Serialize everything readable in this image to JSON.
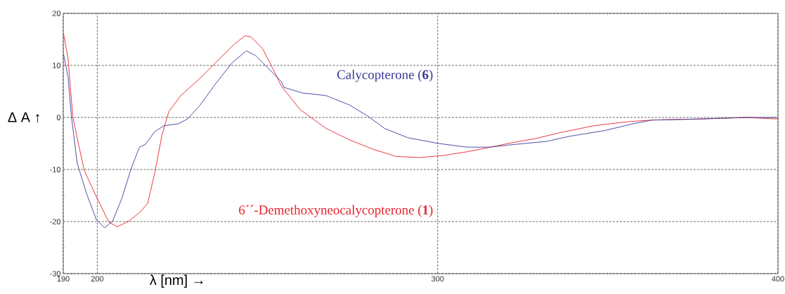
{
  "chart_data": {
    "type": "line",
    "xlabel": "λ [nm] →",
    "ylabel": "Δ A ↑",
    "xlim": [
      190,
      400
    ],
    "ylim": [
      -30,
      20
    ],
    "xticks": [
      190,
      200,
      {
        "value": 250,
        "label": null
      },
      300,
      {
        "value": 350,
        "label": null
      },
      400
    ],
    "yticks": [
      -30,
      {
        "value": -25,
        "label": null
      },
      -20,
      {
        "value": -15,
        "label": null
      },
      -10,
      {
        "value": -5,
        "label": null
      },
      0,
      {
        "value": 5,
        "label": null
      },
      10,
      {
        "value": 15,
        "label": null
      },
      20
    ],
    "grid": true,
    "legend": false,
    "marker": "none",
    "line_style": "solid",
    "series": [
      {
        "name": "6´´-Demethoxyneocalycopterone (**1**)",
        "color": "#e8222a",
        "x": [
          190.1,
          191.4,
          192.8,
          194.5,
          196.2,
          200,
          203.4,
          205.9,
          209.3,
          212.7,
          214.8,
          216.9,
          219.0,
          221.0,
          224.5,
          230.0,
          234.1,
          240.3,
          243.4,
          245.1,
          248.6,
          251.4,
          254.1,
          259.6,
          267.2,
          274.1,
          281.0,
          287.9,
          294.8,
          301.7,
          308.6,
          315.5,
          322.3,
          328.5,
          335.4,
          345.8,
          356.1,
          363.0,
          376.8,
          390.6,
          400
        ],
        "values": [
          16.0,
          11.4,
          0.2,
          -5.2,
          -10.2,
          -15.6,
          -20.1,
          -21.0,
          -19.9,
          -18.1,
          -16.5,
          -10.6,
          -3.4,
          1.1,
          4.2,
          7.4,
          10.1,
          14.1,
          15.7,
          15.5,
          13.2,
          9.6,
          6.0,
          1.5,
          -2.1,
          -4.3,
          -6.1,
          -7.5,
          -7.7,
          -7.3,
          -6.6,
          -5.7,
          -4.8,
          -4.1,
          -3.0,
          -1.6,
          -0.8,
          -0.5,
          -0.3,
          0.0,
          -0.3
        ]
      },
      {
        "name": "Calycopterone (**6**)",
        "color": "#3a3a9a",
        "x": [
          190.1,
          191.4,
          192.4,
          194.1,
          196.9,
          199.7,
          202.1,
          204.5,
          207.2,
          210.0,
          212.4,
          214.1,
          216.9,
          219.6,
          223.8,
          226.5,
          230.0,
          234.8,
          239.6,
          243.8,
          246.5,
          250.0,
          254.1,
          254.8,
          260.3,
          267.2,
          274.1,
          279.6,
          284.4,
          291.3,
          300.3,
          308.6,
          315.5,
          322.3,
          332.0,
          338.9,
          349.2,
          357.5,
          363.0,
          376.8,
          390.6,
          400
        ],
        "values": [
          12.1,
          7.8,
          0.2,
          -8.8,
          -14.7,
          -19.6,
          -21.2,
          -19.9,
          -15.6,
          -9.7,
          -5.7,
          -5.2,
          -2.7,
          -1.6,
          -1.2,
          -0.3,
          2.2,
          6.5,
          10.5,
          12.8,
          11.9,
          9.6,
          6.9,
          5.8,
          4.7,
          4.2,
          2.4,
          0.2,
          -2.1,
          -3.9,
          -5.0,
          -5.7,
          -5.7,
          -5.2,
          -4.6,
          -3.6,
          -2.5,
          -1.2,
          -0.5,
          -0.3,
          0.0,
          0.0
        ]
      }
    ]
  }
}
